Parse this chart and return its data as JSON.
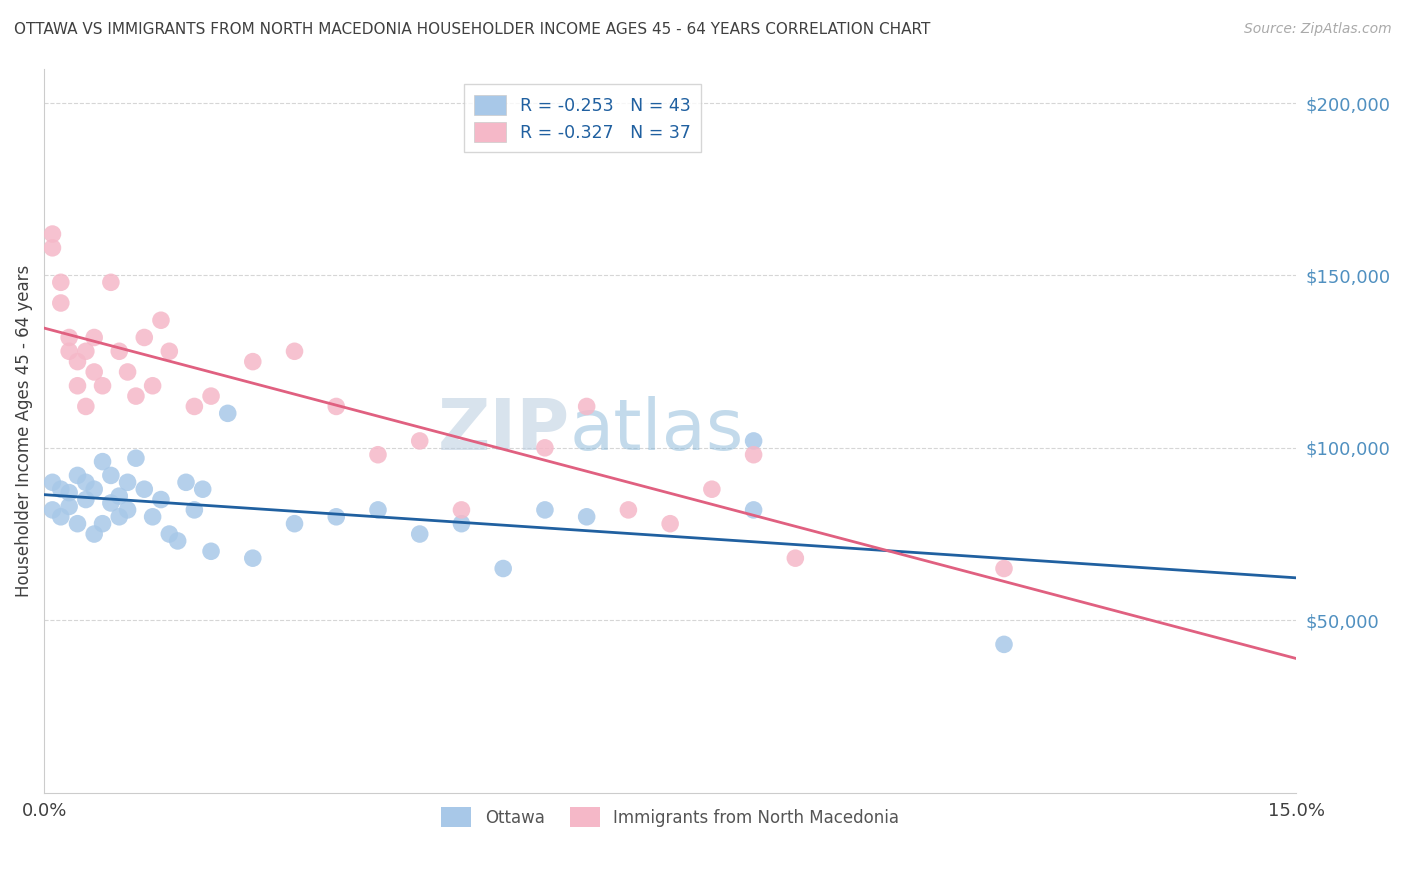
{
  "title": "OTTAWA VS IMMIGRANTS FROM NORTH MACEDONIA HOUSEHOLDER INCOME AGES 45 - 64 YEARS CORRELATION CHART",
  "source": "Source: ZipAtlas.com",
  "ylabel": "Householder Income Ages 45 - 64 years",
  "xlim": [
    0,
    0.15
  ],
  "ylim": [
    0,
    210000
  ],
  "yticks": [
    50000,
    100000,
    150000,
    200000
  ],
  "ytick_labels": [
    "$50,000",
    "$100,000",
    "$150,000",
    "$200,000"
  ],
  "xticks": [
    0.0,
    0.025,
    0.05,
    0.075,
    0.1,
    0.125,
    0.15
  ],
  "xtick_labels": [
    "0.0%",
    "",
    "",
    "",
    "",
    "",
    "15.0%"
  ],
  "legend_bottom_ottawa": "Ottawa",
  "legend_bottom_macedonia": "Immigrants from North Macedonia",
  "ottawa_color": "#a8c8e8",
  "macedonia_color": "#f5b8c8",
  "ottawa_line_color": "#2060a0",
  "macedonia_line_color": "#e06080",
  "background_color": "#ffffff",
  "grid_color": "#cccccc",
  "title_color": "#404040",
  "source_color": "#aaaaaa",
  "axis_label_color": "#404040",
  "ytick_color": "#5090c0",
  "xtick_color": "#404040",
  "watermark_color": "#c8dff0",
  "ottawa_x": [
    0.001,
    0.001,
    0.002,
    0.002,
    0.003,
    0.003,
    0.004,
    0.004,
    0.005,
    0.005,
    0.006,
    0.006,
    0.007,
    0.007,
    0.008,
    0.008,
    0.009,
    0.009,
    0.01,
    0.01,
    0.011,
    0.012,
    0.013,
    0.014,
    0.015,
    0.016,
    0.017,
    0.018,
    0.019,
    0.02,
    0.022,
    0.025,
    0.03,
    0.035,
    0.04,
    0.045,
    0.05,
    0.055,
    0.06,
    0.065,
    0.085,
    0.085,
    0.115
  ],
  "ottawa_y": [
    90000,
    82000,
    88000,
    80000,
    87000,
    83000,
    92000,
    78000,
    85000,
    90000,
    75000,
    88000,
    96000,
    78000,
    92000,
    84000,
    86000,
    80000,
    90000,
    82000,
    97000,
    88000,
    80000,
    85000,
    75000,
    73000,
    90000,
    82000,
    88000,
    70000,
    110000,
    68000,
    78000,
    80000,
    82000,
    75000,
    78000,
    65000,
    82000,
    80000,
    102000,
    82000,
    43000
  ],
  "macedonia_x": [
    0.001,
    0.001,
    0.002,
    0.002,
    0.003,
    0.003,
    0.004,
    0.004,
    0.005,
    0.005,
    0.006,
    0.006,
    0.007,
    0.008,
    0.009,
    0.01,
    0.011,
    0.012,
    0.013,
    0.014,
    0.015,
    0.018,
    0.02,
    0.025,
    0.03,
    0.035,
    0.04,
    0.045,
    0.05,
    0.06,
    0.065,
    0.07,
    0.075,
    0.08,
    0.085,
    0.09,
    0.115
  ],
  "macedonia_y": [
    158000,
    162000,
    148000,
    142000,
    132000,
    128000,
    125000,
    118000,
    112000,
    128000,
    132000,
    122000,
    118000,
    148000,
    128000,
    122000,
    115000,
    132000,
    118000,
    137000,
    128000,
    112000,
    115000,
    125000,
    128000,
    112000,
    98000,
    102000,
    82000,
    100000,
    112000,
    82000,
    78000,
    88000,
    98000,
    68000,
    65000
  ]
}
